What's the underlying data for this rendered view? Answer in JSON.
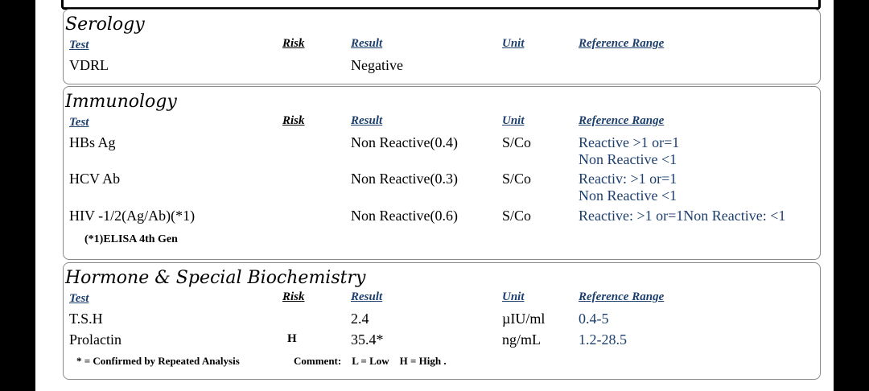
{
  "headers": {
    "test": "Test",
    "risk": "Risk",
    "result": "Result",
    "unit": "Unit",
    "reference": "Reference Range"
  },
  "serology": {
    "title": "Serology",
    "rows": [
      {
        "test": "VDRL",
        "result": "Negative"
      }
    ]
  },
  "immunology": {
    "title": "Immunology",
    "rows": [
      {
        "test": "HBs Ag",
        "result": "Non Reactive(0.4)",
        "unit": "S/Co",
        "ref1": "Reactive >1  or=1",
        "ref2": "Non Reactive <1"
      },
      {
        "test": "HCV Ab",
        "result": "Non Reactive(0.3)",
        "unit": "S/Co",
        "ref1": "Reactiv: >1  or=1",
        "ref2": "Non Reactive <1"
      },
      {
        "test": "HIV -1/2(Ag/Ab)(*1)",
        "result": "Non Reactive(0.6)",
        "unit": "S/Co",
        "ref1": "Reactive:  >1  or=1Non Reactive: <1"
      }
    ],
    "footnote": "(*1)ELISA  4th Gen"
  },
  "hormone": {
    "title": "Hormone & Special Biochemistry",
    "rows": [
      {
        "test": "T.S.H",
        "risk": "",
        "result": "2.4",
        "unit": "µIU/ml",
        "ref": "0.4-5"
      },
      {
        "test": "Prolactin",
        "risk": "H",
        "result": "35.4*",
        "unit": "ng/mL",
        "ref": "1.2-28.5"
      }
    ],
    "footnote": "* = Confirmed by Repeated Analysis",
    "comment": "Comment:    L = Low    H = High ."
  }
}
